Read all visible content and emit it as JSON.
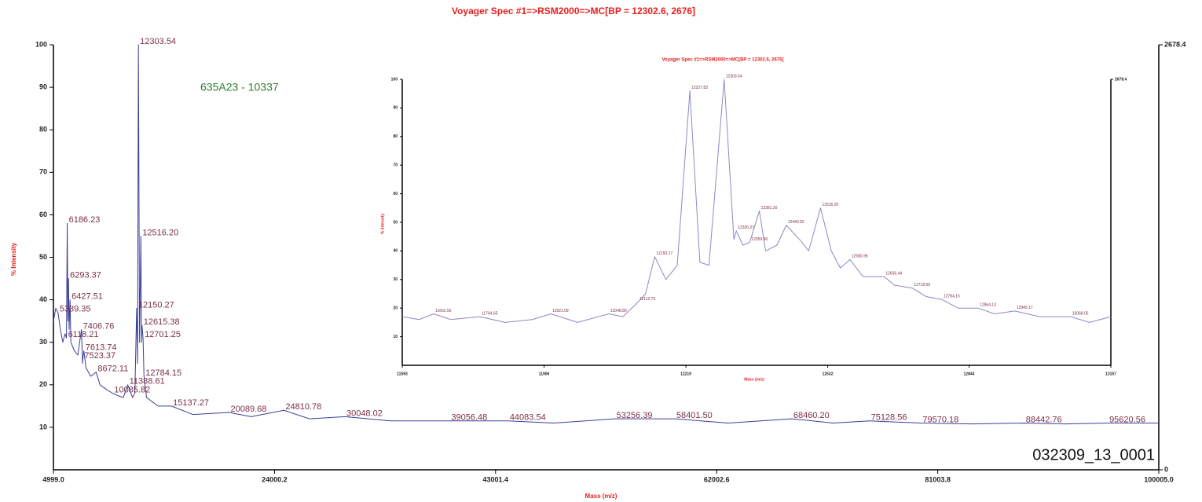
{
  "chart_data": [
    {
      "type": "line",
      "title": "Voyager Spec #1=>RSM2000=>MC[BP = 12302.6, 2676]",
      "x_label": "Mass (m/z)",
      "y_label": "% Intensity",
      "annotations": [
        "635A23 - 10337",
        "032309_13_0001"
      ],
      "x": [
        4999,
        5200,
        5389.35,
        5600,
        5800,
        6000,
        6118.21,
        6186.23,
        6240,
        6293.37,
        6350,
        6427.51,
        6500,
        6800,
        7100,
        7406.76,
        7500,
        7523.37,
        7613.74,
        7800,
        8200,
        8672.11,
        9000,
        9500,
        10085.82,
        10500,
        11000,
        11388.61,
        11800,
        12000,
        12150.27,
        12230,
        12303.54,
        12400,
        12516.2,
        12570,
        12615.38,
        12701.25,
        12784.15,
        13000,
        14000,
        15137.27,
        17000,
        20089.68,
        22000,
        24810.78,
        27000,
        30048.02,
        34000,
        39056.48,
        44083.54,
        48000,
        53256.39,
        58401.5,
        63000,
        68460.2,
        72000,
        75128.56,
        79570.18,
        84000,
        88442.76,
        92000,
        95620.56,
        100005
      ],
      "series": [
        {
          "color": "#3a3f98",
          "values": [
            35,
            38,
            37,
            33,
            30,
            32,
            31,
            58,
            35,
            45,
            33,
            40,
            30,
            28,
            27,
            33,
            25,
            26,
            28,
            24,
            22,
            23,
            20,
            19,
            18,
            17.5,
            17,
            20,
            17,
            18,
            38,
            25,
            100,
            30,
            55,
            30,
            34,
            31,
            22,
            17,
            15,
            15,
            13,
            13.5,
            12.5,
            14,
            12,
            12.5,
            11.5,
            11.5,
            11.5,
            11,
            12,
            12,
            11,
            12,
            11,
            11.5,
            11,
            10.8,
            11,
            10.8,
            11,
            11
          ]
        }
      ],
      "peak_labels": [
        5389.35,
        6118.21,
        6186.23,
        6293.37,
        6427.51,
        7406.76,
        7523.37,
        7613.74,
        8672.11,
        10085.82,
        11388.61,
        12150.27,
        12303.54,
        {
          "value": 12516.2,
          "label": "12516.20"
        },
        12615.38,
        12701.25,
        12784.15,
        15137.27,
        20089.68,
        24810.78,
        30048.02,
        39056.48,
        44083.54,
        53256.39,
        {
          "value": 58401.5,
          "label": "58401.50"
        },
        {
          "value": 68460.2,
          "label": "68460.20"
        },
        75128.56,
        79570.18,
        88442.76,
        95620.56
      ],
      "xlim": [
        4999,
        100005
      ],
      "xticks": [
        {
          "value": 4999,
          "label": "4999.0"
        },
        24000.2,
        43001.4,
        62002.6,
        81003.8,
        {
          "value": 100005,
          "label": "100005.0"
        }
      ],
      "ylim": [
        0,
        100
      ],
      "yticks": [
        10,
        20,
        30,
        40,
        50,
        60,
        70,
        80,
        90,
        100
      ],
      "y2lim": [
        0,
        2678.4
      ],
      "y2ticks": [
        0,
        2678.4
      ]
    },
    {
      "type": "line",
      "title": "Voyager Spec #1=>RSM2000=>MC[BP = 12302.6, 2676]",
      "x_label": "Mass (m/z)",
      "y_label": "% Intensity",
      "x": [
        11593,
        11630,
        11662.56,
        11700,
        11764.65,
        11820,
        11880,
        11921.09,
        11980,
        12048.8,
        12080,
        12112.73,
        12130,
        12150.27,
        12175,
        12200,
        12227.83,
        12250,
        12270,
        12303.54,
        12325,
        12330.27,
        12345,
        12359.96,
        12381.2,
        12395,
        12420,
        12440.5,
        12470,
        12490,
        12516.2,
        12540,
        12560,
        12580.96,
        12610,
        12656.44,
        12680,
        12718.69,
        12750,
        12784.15,
        12820,
        12864.13,
        12900,
        12945.17,
        13000,
        13068.05,
        13110,
        13157
      ],
      "series": [
        {
          "color": "#8a8ac8",
          "values": [
            17,
            16,
            18,
            16,
            17,
            15,
            16,
            18,
            15,
            18,
            17,
            22,
            25,
            38,
            30,
            35,
            96,
            36,
            35,
            100,
            44,
            47,
            42,
            43,
            54,
            40,
            42,
            49,
            44,
            40,
            55,
            40,
            34,
            37,
            31,
            31,
            28,
            27,
            24,
            23,
            20,
            20,
            18,
            19,
            17,
            17,
            15,
            17
          ]
        }
      ],
      "peak_labels": [
        11662.56,
        11764.65,
        11921.09,
        {
          "value": 12048.8,
          "label": "12048.80"
        },
        12112.73,
        12150.27,
        12227.83,
        12303.54,
        12330.27,
        12359.96,
        {
          "value": 12381.2,
          "label": "12381.20"
        },
        {
          "value": 12440.5,
          "label": "12440.50"
        },
        {
          "value": 12516.2,
          "label": "12516.20"
        },
        12580.96,
        12656.44,
        12718.69,
        12784.15,
        12864.13,
        12945.17,
        13068.05
      ],
      "xlim": [
        11593,
        13157
      ],
      "xticks": [
        11593,
        11906,
        12219,
        12532,
        12844,
        13157
      ],
      "ylim": [
        0,
        100
      ],
      "yticks": [
        10,
        20,
        30,
        40,
        50,
        60,
        70,
        80,
        90,
        100
      ],
      "y2lim": [
        0,
        2678.4
      ],
      "y2ticks": [
        2678.4
      ]
    }
  ]
}
